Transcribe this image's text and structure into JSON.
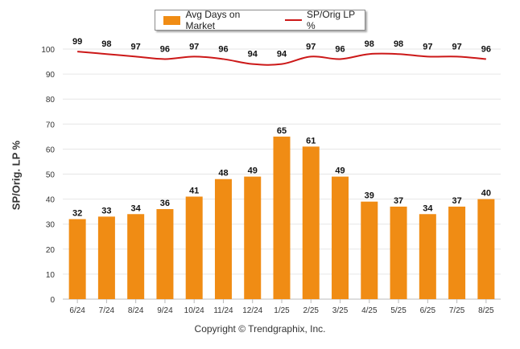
{
  "legend": {
    "bar_label": "Avg Days on Market",
    "line_label": "SP/Orig LP %"
  },
  "footer": {
    "copyright": "Copyright © Trendgraphix, Inc."
  },
  "colors": {
    "bar": "#f08c14",
    "line": "#cc1818",
    "grid": "#e6e6e6"
  },
  "chart_data": {
    "type": "bar",
    "categories": [
      "6/24",
      "7/24",
      "8/24",
      "9/24",
      "10/24",
      "11/24",
      "12/24",
      "1/25",
      "2/25",
      "3/25",
      "4/25",
      "5/25",
      "6/25",
      "7/25",
      "8/25"
    ],
    "series": [
      {
        "name": "Avg Days on Market",
        "type": "bar",
        "values": [
          32,
          33,
          34,
          36,
          41,
          48,
          49,
          65,
          61,
          49,
          39,
          37,
          34,
          37,
          40
        ]
      },
      {
        "name": "SP/Orig LP %",
        "type": "line",
        "values": [
          99,
          98,
          97,
          96,
          97,
          96,
          94,
          94,
          97,
          96,
          98,
          98,
          97,
          97,
          96
        ]
      }
    ],
    "ylabel": "SP/Orig. LP %",
    "xlabel": "",
    "ylim": [
      0,
      100
    ],
    "yticks": [
      0,
      10,
      20,
      30,
      40,
      50,
      60,
      70,
      80,
      90,
      100
    ],
    "grid": true,
    "legend_position": "top-center"
  }
}
